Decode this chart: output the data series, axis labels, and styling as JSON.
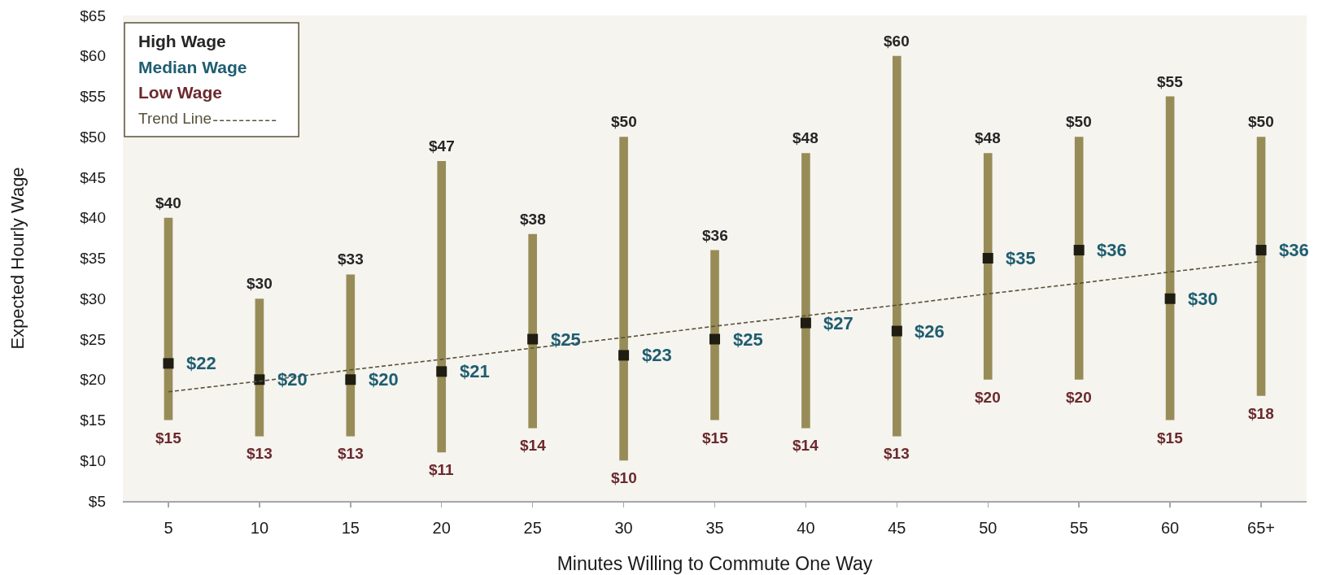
{
  "chart_data": {
    "type": "bar",
    "xlabel": "Minutes Willing to Commute One Way",
    "ylabel": "Expected Hourly Wage",
    "categories": [
      "5",
      "10",
      "15",
      "20",
      "25",
      "30",
      "35",
      "40",
      "45",
      "50",
      "55",
      "60",
      "65+"
    ],
    "ylim": [
      5,
      65
    ],
    "yticks": [
      {
        "value": 5,
        "label": "$5"
      },
      {
        "value": 10,
        "label": "$10"
      },
      {
        "value": 15,
        "label": "$15"
      },
      {
        "value": 20,
        "label": "$20"
      },
      {
        "value": 25,
        "label": "$25"
      },
      {
        "value": 30,
        "label": "$30"
      },
      {
        "value": 35,
        "label": "$35"
      },
      {
        "value": 40,
        "label": "$40"
      },
      {
        "value": 45,
        "label": "$45"
      },
      {
        "value": 50,
        "label": "$50"
      },
      {
        "value": 55,
        "label": "$55"
      },
      {
        "value": 60,
        "label": "$60"
      },
      {
        "value": 65,
        "label": "$65"
      }
    ],
    "legend": "top left",
    "series": [
      {
        "color": "#978c57",
        "base": [
          15,
          13,
          13,
          11,
          14,
          10,
          15,
          14,
          13,
          20,
          20,
          15,
          18
        ],
        "values": [
          25,
          17,
          20,
          36,
          24,
          40,
          21,
          34,
          47,
          28,
          30,
          40,
          32
        ]
      },
      {
        "type": "scatter",
        "color": "#1f1d12",
        "marker": "square",
        "values": [
          22,
          20,
          20,
          21,
          25,
          23,
          25,
          27,
          26,
          35,
          36,
          30,
          36
        ]
      },
      {
        "type": "line",
        "name": "Trend Line",
        "color": "#57523a",
        "line_style": "dashed",
        "values": [
          18.5,
          19.8,
          21.2,
          22.5,
          23.9,
          25.2,
          26.6,
          27.9,
          29.2,
          30.6,
          31.9,
          33.3,
          34.6
        ]
      }
    ],
    "annotations": [
      "High Wage",
      "Median Wage",
      "Low Wage",
      {
        "text": "$40",
        "x": "5",
        "y": 40
      },
      {
        "text": "$30",
        "x": "10",
        "y": 30
      },
      {
        "text": "$33",
        "x": "15",
        "y": 33
      },
      {
        "text": "$47",
        "x": "20",
        "y": 47
      },
      {
        "text": "$38",
        "x": "25",
        "y": 38
      },
      {
        "text": "$50",
        "x": "30",
        "y": 50
      },
      {
        "text": "$36",
        "x": "35",
        "y": 36
      },
      {
        "text": "$48",
        "x": "40",
        "y": 48
      },
      {
        "text": "$60",
        "x": "45",
        "y": 60
      },
      {
        "text": "$48",
        "x": "50",
        "y": 48
      },
      {
        "text": "$50",
        "x": "55",
        "y": 50
      },
      {
        "text": "$55",
        "x": "60",
        "y": 55
      },
      {
        "text": "$50",
        "x": "65+",
        "y": 50
      },
      {
        "text": "$22",
        "x": "5",
        "y": 22
      },
      {
        "text": "$20",
        "x": "10",
        "y": 20
      },
      {
        "text": "$20",
        "x": "15",
        "y": 20
      },
      {
        "text": "$21",
        "x": "20",
        "y": 21
      },
      {
        "text": "$25",
        "x": "25",
        "y": 25
      },
      {
        "text": "$23",
        "x": "30",
        "y": 23
      },
      {
        "text": "$25",
        "x": "35",
        "y": 25
      },
      {
        "text": "$27",
        "x": "40",
        "y": 27
      },
      {
        "text": "$26",
        "x": "45",
        "y": 26
      },
      {
        "text": "$35",
        "x": "50",
        "y": 35
      },
      {
        "text": "$36",
        "x": "55",
        "y": 36
      },
      {
        "text": "$30",
        "x": "60",
        "y": 30
      },
      {
        "text": "$36",
        "x": "65+",
        "y": 36
      },
      {
        "text": "$15",
        "x": "5",
        "y": 15
      },
      {
        "text": "$13",
        "x": "10",
        "y": 13
      },
      {
        "text": "$13",
        "x": "15",
        "y": 13
      },
      {
        "text": "$11",
        "x": "20",
        "y": 11
      },
      {
        "text": "$14",
        "x": "25",
        "y": 14
      },
      {
        "text": "$10",
        "x": "30",
        "y": 10
      },
      {
        "text": "$15",
        "x": "35",
        "y": 15
      },
      {
        "text": "$14",
        "x": "40",
        "y": 14
      },
      {
        "text": "$13",
        "x": "45",
        "y": 13
      },
      {
        "text": "$20",
        "x": "50",
        "y": 20
      },
      {
        "text": "$20",
        "x": "55",
        "y": 20
      },
      {
        "text": "$15",
        "x": "60",
        "y": 15
      },
      {
        "text": "$18",
        "x": "65+",
        "y": 18
      }
    ]
  }
}
